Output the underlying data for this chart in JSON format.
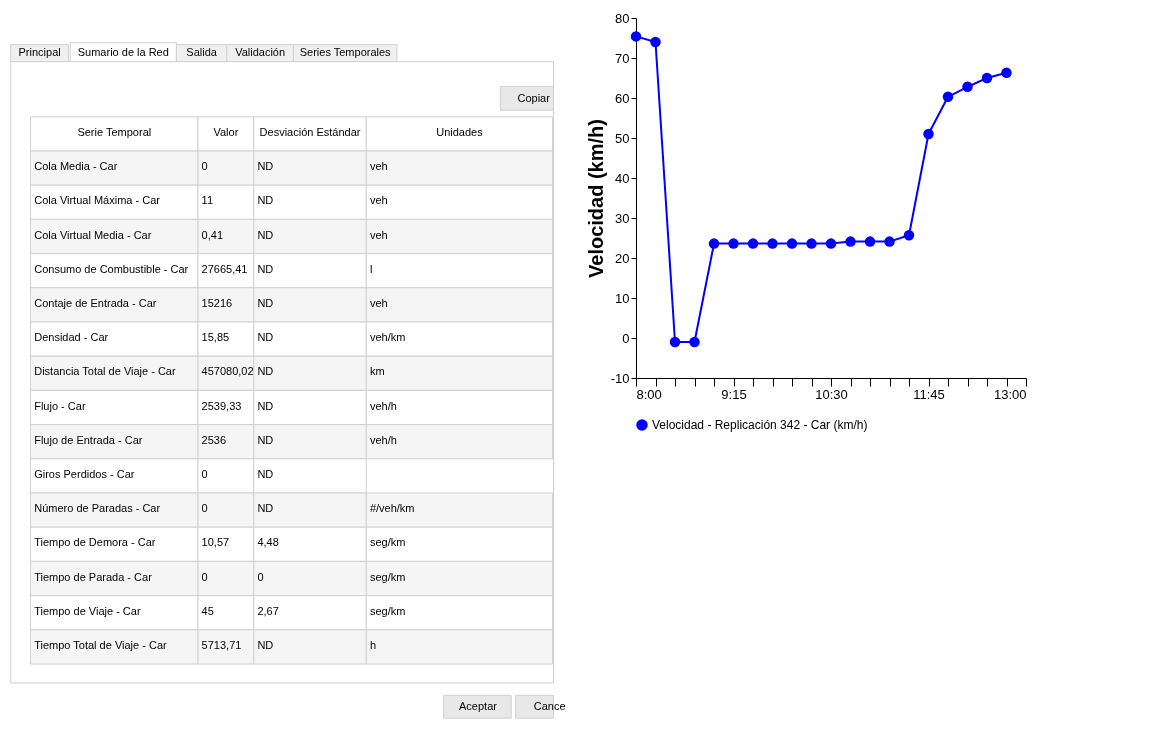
{
  "chart_data": [
    {
      "type": "other",
      "annotations": [
        "Principal",
        "Sumario de la Red",
        "Salida",
        "Validación",
        "Series Temporales",
        "Copiar",
        "Serie Temporal",
        "Valor",
        "Desviación Estándar",
        "Unidades",
        "Cola Media - Car",
        "0",
        "ND",
        "veh",
        "Cola Virtual Máxima - Car",
        "11",
        "ND",
        "veh",
        "Cola Virtual Media - Car",
        "0,41",
        "ND",
        "veh",
        "Consumo de Combustible - Car",
        "27665,41",
        "ND",
        "l",
        "Contaje de Entrada - Car",
        "15216",
        "ND",
        "veh",
        "Densidad - Car",
        "15,85",
        "ND",
        "veh/km",
        "Distancia Total de Viaje - Car",
        "457080,02",
        "ND",
        "km",
        "Flujo - Car",
        "2539,33",
        "ND",
        "veh/h",
        "Flujo de Entrada - Car",
        "2536",
        "ND",
        "veh/h",
        "Giros Perdidos - Car",
        "0",
        "ND",
        null,
        "Número de Paradas - Car",
        "0",
        "ND",
        "#/veh/km",
        "Tiempo de Demora - Car",
        "10,57",
        "4,48",
        "seg/km",
        "Tiempo de Parada - Car",
        "0",
        "0",
        "seg/km",
        "Tiempo de Viaje - Car",
        "45",
        "2,67",
        "seg/km",
        "Tiempo Total de Viaje - Car",
        "5713,71",
        "ND",
        "h",
        "Aceptar",
        "Cance"
      ]
    },
    {
      "type": "line",
      "ylabel": "Velocidad (km/h)",
      "marker": "circle",
      "legend": "bottom",
      "x": [
        8,
        8.25,
        8.5,
        8.75,
        9,
        9.25,
        9.5,
        9.75,
        10,
        10.25,
        10.5,
        10.75,
        11,
        11.25,
        11.5,
        11.75,
        12,
        12.25,
        12.5,
        12.75
      ],
      "series": [
        {
          "name": "Velocidad - Replicación 342 - Car (km/h)",
          "color": "#0000ff",
          "values": [
            75.4,
            74,
            -1,
            -1,
            23.6,
            23.6,
            23.6,
            23.6,
            23.6,
            23.6,
            23.6,
            24.1,
            24.1,
            24.1,
            25.7,
            51,
            60.3,
            62.8,
            65,
            66.3
          ]
        }
      ],
      "xlim": [
        8,
        13
      ],
      "xticks": [
        {
          "value": 8,
          "label": "8:00"
        },
        {
          "value": 8.25,
          "label": null
        },
        {
          "value": 8.5,
          "label": null
        },
        {
          "value": 8.75,
          "label": null
        },
        {
          "value": 9,
          "label": null
        },
        {
          "value": 9.25,
          "label": "9:15"
        },
        {
          "value": 9.5,
          "label": null
        },
        {
          "value": 9.75,
          "label": null
        },
        {
          "value": 10,
          "label": null
        },
        {
          "value": 10.25,
          "label": null
        },
        {
          "value": 10.5,
          "label": "10:30"
        },
        {
          "value": 10.75,
          "label": null
        },
        {
          "value": 11,
          "label": null
        },
        {
          "value": 11.25,
          "label": null
        },
        {
          "value": 11.5,
          "label": null
        },
        {
          "value": 11.75,
          "label": "11:45"
        },
        {
          "value": 12,
          "label": null
        },
        {
          "value": 12.25,
          "label": null
        },
        {
          "value": 12.5,
          "label": null
        },
        {
          "value": 12.75,
          "label": null
        },
        {
          "value": 13,
          "label": "13:00"
        }
      ],
      "ylim": [
        -10,
        80
      ],
      "yticks": [
        -10,
        0,
        10,
        20,
        30,
        40,
        50,
        60,
        70,
        80
      ],
      "grid": false
    }
  ]
}
